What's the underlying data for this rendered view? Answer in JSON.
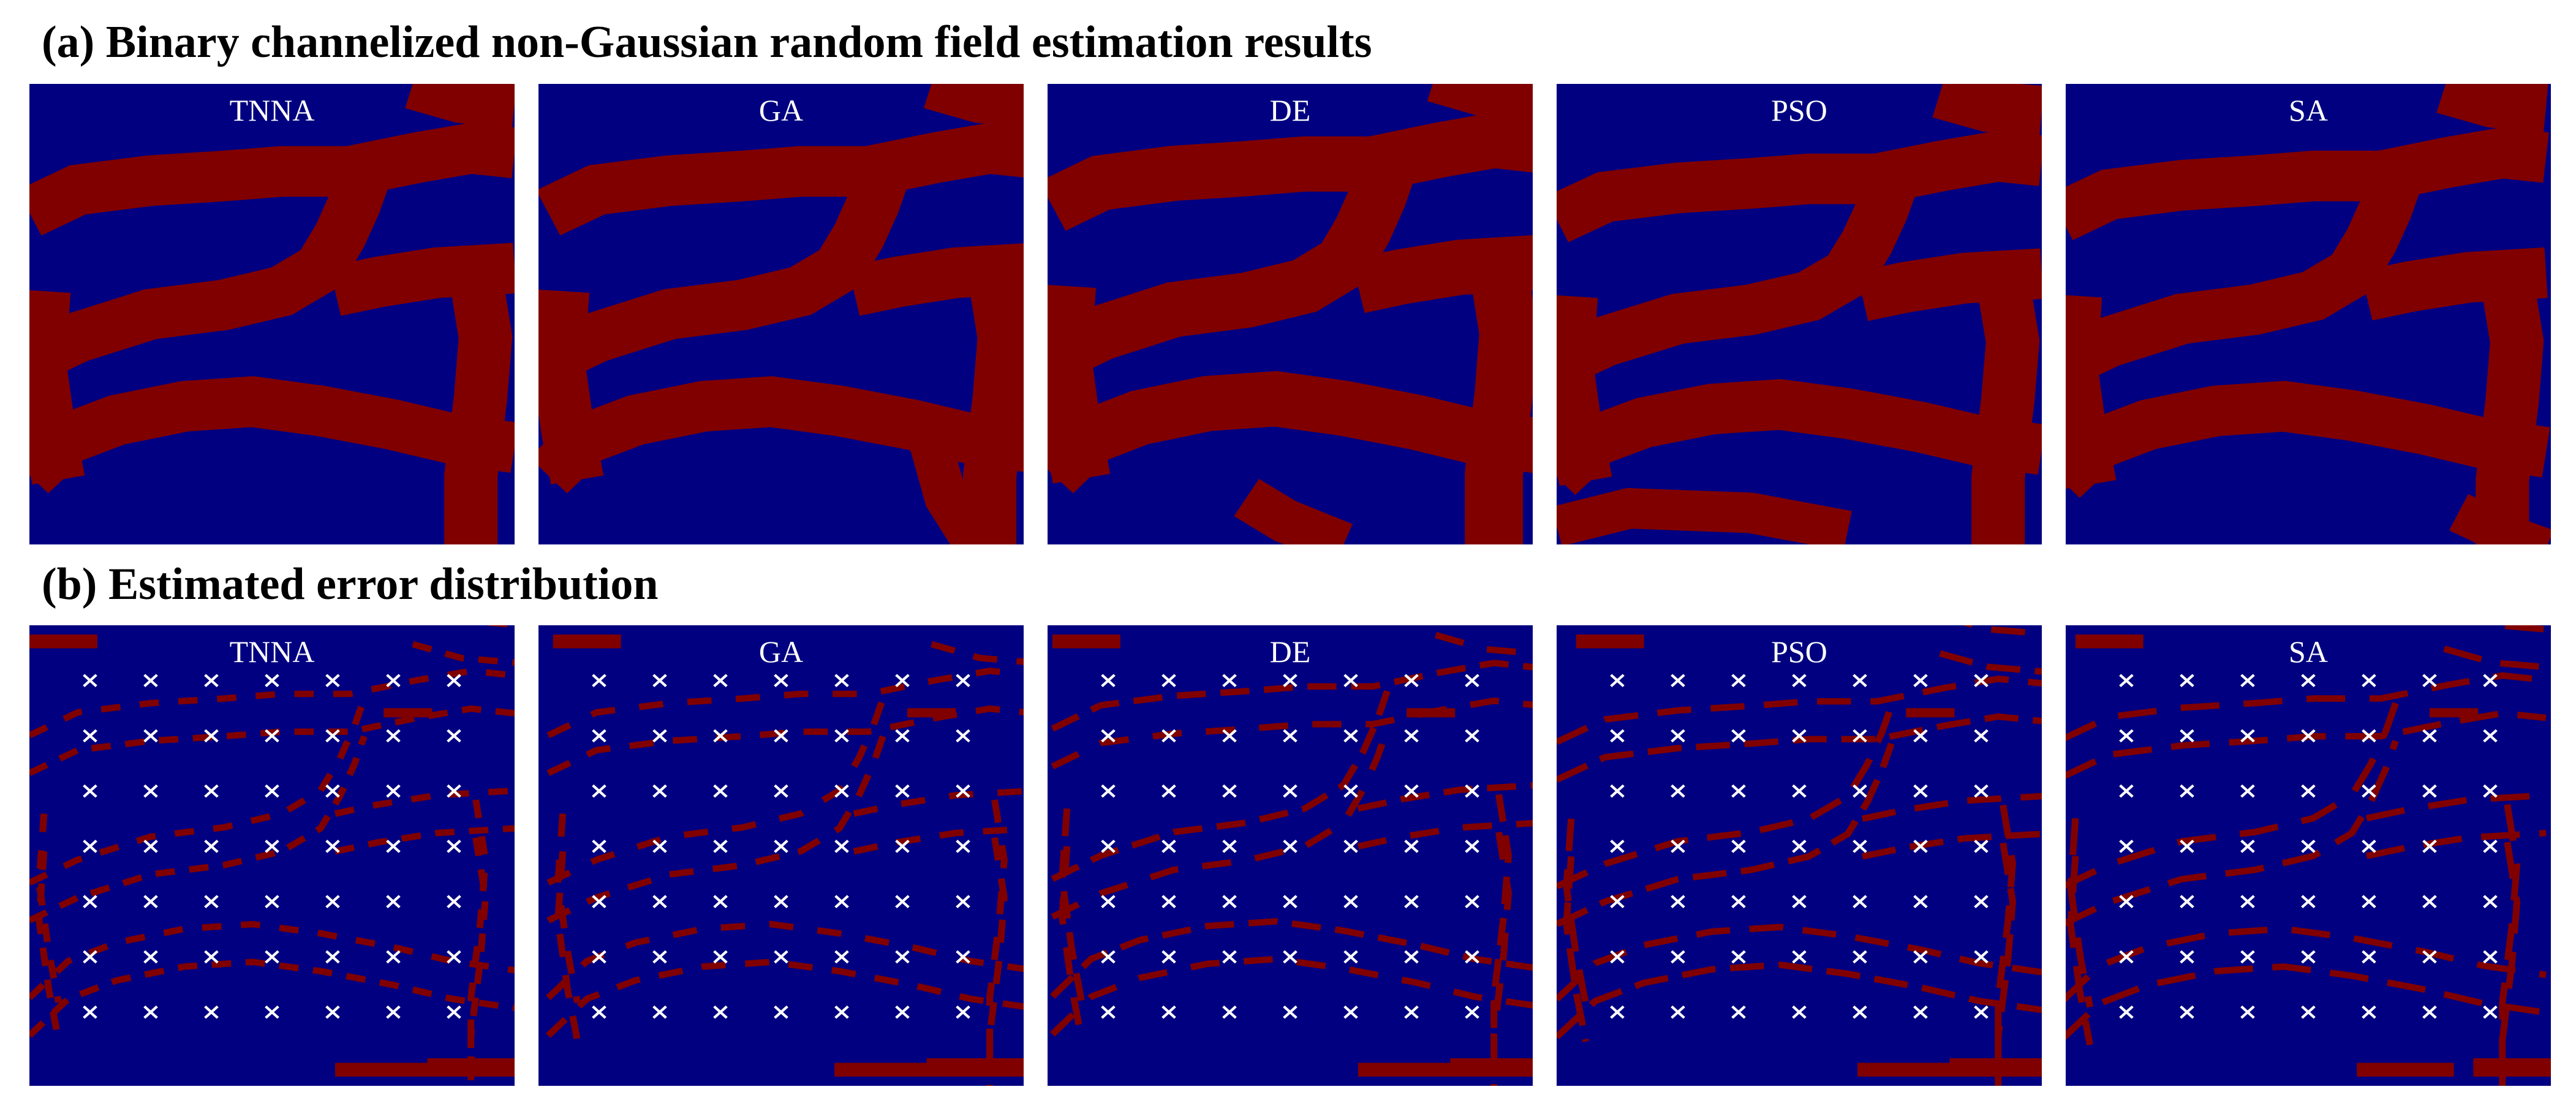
{
  "colors": {
    "background": "#000080",
    "channel": "#800000",
    "marker": "#ffffff"
  },
  "chart_data": [
    {
      "type": "heatmap",
      "title": "(a) Binary channelized non-Gaussian random field estimation results",
      "panels": [
        {
          "label": "TNNA"
        },
        {
          "label": "GA"
        },
        {
          "label": "DE"
        },
        {
          "label": "PSO"
        },
        {
          "label": "SA"
        }
      ]
    },
    {
      "type": "heatmap",
      "title": "(b) Estimated error distribution",
      "panels": [
        {
          "label": "TNNA"
        },
        {
          "label": "GA"
        },
        {
          "label": "DE"
        },
        {
          "label": "PSO"
        },
        {
          "label": "SA"
        }
      ],
      "observation_grid": {
        "rows": 7,
        "cols": 7,
        "marker": "×"
      }
    }
  ]
}
